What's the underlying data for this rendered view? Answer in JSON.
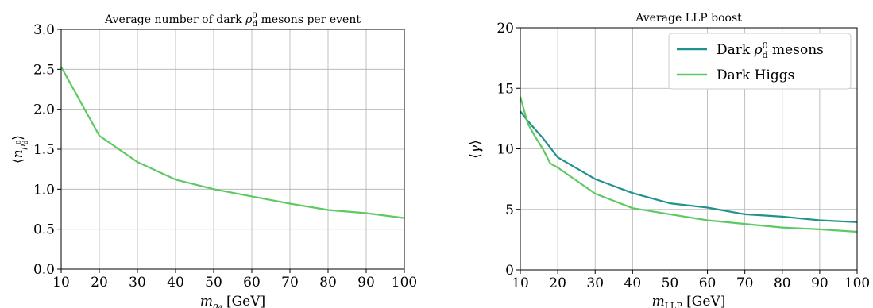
{
  "chart_data": [
    {
      "type": "line",
      "title": "Average number of dark ρ⁰d mesons per event",
      "xlabel": "mρd [GeV]",
      "ylabel": "⟨nρ⁰d⟩",
      "xlim": [
        10,
        100
      ],
      "ylim": [
        0.0,
        3.0
      ],
      "xticks": [
        "10",
        "20",
        "30",
        "40",
        "50",
        "60",
        "70",
        "80",
        "90",
        "100"
      ],
      "yticks": [
        "0.0",
        "0.5",
        "1.0",
        "1.5",
        "2.0",
        "2.5",
        "3.0"
      ],
      "grid": true,
      "legend": "none",
      "series": [
        {
          "color": "#5ec962",
          "x": [
            10,
            20,
            30,
            40,
            50,
            60,
            70,
            80,
            90,
            100
          ],
          "y": [
            2.53,
            1.67,
            1.34,
            1.12,
            1.0,
            0.91,
            0.82,
            0.74,
            0.7,
            0.64
          ]
        }
      ]
    },
    {
      "type": "line",
      "title": "Average LLP boost",
      "xlabel": "mLLP [GeV]",
      "ylabel": "⟨γ⟩",
      "xlim": [
        10,
        100
      ],
      "ylim": [
        0,
        20
      ],
      "xticks": [
        "10",
        "20",
        "30",
        "40",
        "50",
        "60",
        "70",
        "80",
        "90",
        "100"
      ],
      "yticks": [
        "0",
        "5",
        "10",
        "15",
        "20"
      ],
      "grid": true,
      "legend": "top-right",
      "series": [
        {
          "name": "Dark ρ⁰d mesons",
          "color": "#21918c",
          "x": [
            10,
            12,
            14,
            16,
            18,
            20,
            30,
            40,
            50,
            60,
            70,
            80,
            90,
            100
          ],
          "y": [
            13.1,
            12.3,
            11.6,
            10.9,
            10.1,
            9.3,
            7.5,
            6.35,
            5.5,
            5.15,
            4.6,
            4.4,
            4.1,
            3.95
          ]
        },
        {
          "name": "Dark Higgs",
          "color": "#5ec962",
          "x": [
            10,
            12,
            14,
            16,
            18,
            20,
            30,
            40,
            50,
            60,
            70,
            80,
            90,
            100
          ],
          "y": [
            14.3,
            12.1,
            11.0,
            10.0,
            8.8,
            8.45,
            6.3,
            5.1,
            4.6,
            4.1,
            3.8,
            3.5,
            3.35,
            3.15
          ]
        }
      ]
    }
  ]
}
